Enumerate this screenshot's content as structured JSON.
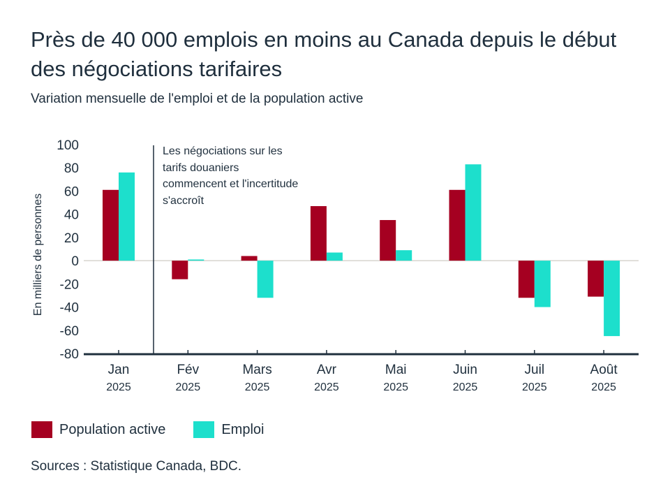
{
  "title": "Près de 40 000 emplois en moins au Canada depuis le début des négociations tarifaires",
  "subtitle": "Variation mensuelle de l'emploi et de la population active",
  "source": "Sources : Statistique Canada, BDC.",
  "chart_data": {
    "type": "bar",
    "title": "Près de 40 000 emplois en moins au Canada depuis le début des négociations tarifaires",
    "subtitle": "Variation mensuelle de l'emploi et de la population active",
    "ylabel": "En milliers de personnes",
    "xlabel": "",
    "ylim": [
      -80,
      100
    ],
    "yticks": [
      100,
      80,
      60,
      40,
      20,
      0,
      -20,
      -40,
      -60,
      -80
    ],
    "categories": [
      "Jan",
      "Fév",
      "Mars",
      "Avr",
      "Mai",
      "Juin",
      "Juil",
      "Août"
    ],
    "category_year": "2025",
    "series": [
      {
        "name": "Population active",
        "color": "#a50021",
        "values": [
          61,
          -16,
          4,
          47,
          35,
          61,
          -32,
          -31
        ]
      },
      {
        "name": "Emploi",
        "color": "#1ddfcc",
        "values": [
          76,
          1,
          -32,
          7,
          9,
          83,
          -40,
          -65
        ]
      }
    ],
    "annotation": {
      "text": "Les négociations sur les tarifs douaniers commencent et l'incertitude s'accroît",
      "after_category": "Jan"
    },
    "grid": false,
    "legend": "bottom-left"
  }
}
